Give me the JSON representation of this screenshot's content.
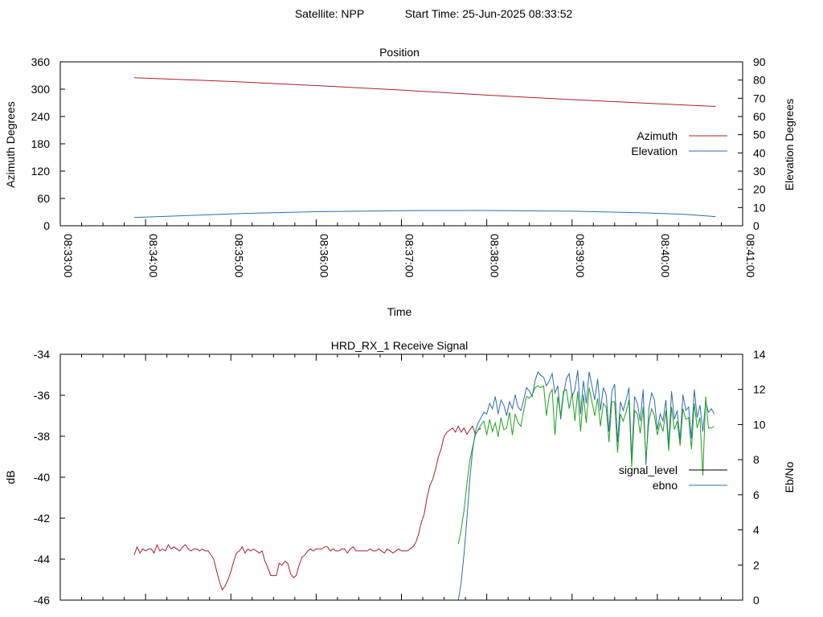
{
  "header": {
    "satellite_label": "Satellite: NPP",
    "start_time_label": "Start Time: 25-Jun-2025 08:33:52"
  },
  "chart_data": [
    {
      "type": "line",
      "title": "Position",
      "xlabel": "Time",
      "ylabel": "Azimuth Degrees",
      "y2label": "Elevation Degrees",
      "x_ticks": [
        "08:33:00",
        "08:34:00",
        "08:35:00",
        "08:36:00",
        "08:37:00",
        "08:38:00",
        "08:39:00",
        "08:40:00",
        "08:41:00"
      ],
      "ylim": [
        0,
        360
      ],
      "y_ticks": [
        0,
        60,
        120,
        180,
        240,
        300,
        360
      ],
      "y2lim": [
        0,
        90
      ],
      "y2_ticks": [
        0,
        10,
        20,
        30,
        40,
        50,
        60,
        70,
        80,
        90
      ],
      "xlim_min": [
        0,
        480
      ],
      "legend_position": "right",
      "series": [
        {
          "name": "Azimuth",
          "axis": "y",
          "color": "#a8202a",
          "x": [
            52,
            120,
            180,
            240,
            300,
            360,
            420,
            461
          ],
          "y": [
            325,
            317,
            308,
            298,
            287,
            277,
            268,
            262
          ]
        },
        {
          "name": "Elevation",
          "axis": "y2",
          "color": "#2f6cb0",
          "x": [
            52,
            90,
            130,
            180,
            240,
            300,
            360,
            410,
            440,
            461
          ],
          "y": [
            4.5,
            5.6,
            6.8,
            7.7,
            8.3,
            8.4,
            8.0,
            7.1,
            6.2,
            5.0
          ]
        }
      ]
    },
    {
      "type": "line",
      "title": "HRD_RX_1 Receive Signal",
      "xlabel": "",
      "ylabel": "dB",
      "y2label": "Eb/No",
      "ylim": [
        -46,
        -34
      ],
      "y_ticks": [
        -46,
        -44,
        -42,
        -40,
        -38,
        -36,
        -34
      ],
      "y2lim": [
        0,
        14
      ],
      "y2_ticks": [
        0,
        2,
        4,
        6,
        8,
        10,
        12,
        14
      ],
      "xlim_min": [
        0,
        480
      ],
      "legend_position": "right",
      "series": [
        {
          "name": "signal_level",
          "axis": "y",
          "color": "#a8202a",
          "legend_color": "#000000",
          "x": [
            52,
            54,
            56,
            58,
            60,
            62,
            64,
            66,
            68,
            70,
            72,
            74,
            76,
            78,
            80,
            82,
            84,
            86,
            88,
            90,
            92,
            94,
            96,
            98,
            100,
            102,
            104,
            106,
            108,
            110,
            112,
            114,
            116,
            118,
            120,
            122,
            124,
            126,
            128,
            130,
            132,
            134,
            136,
            138,
            140,
            142,
            144,
            146,
            148,
            150,
            152,
            154,
            156,
            158,
            160,
            162,
            164,
            166,
            168,
            170,
            172,
            174,
            176,
            178,
            180,
            182,
            184,
            186,
            188,
            190,
            192,
            194,
            196,
            198,
            200,
            202,
            204,
            206,
            208,
            210,
            212,
            214,
            216,
            218,
            220,
            222,
            224,
            226,
            228,
            230,
            232,
            234,
            236,
            238,
            240,
            242,
            244,
            246,
            248,
            250,
            252,
            254,
            256,
            258,
            260,
            262,
            264,
            266,
            268,
            270,
            272,
            274,
            276,
            278,
            280,
            282,
            284,
            286,
            288,
            290,
            292,
            294,
            296
          ],
          "y": [
            -43.8,
            -43.4,
            -43.7,
            -43.5,
            -43.6,
            -43.5,
            -43.5,
            -43.7,
            -43.3,
            -43.6,
            -43.5,
            -43.6,
            -43.3,
            -43.5,
            -43.4,
            -43.5,
            -43.6,
            -43.4,
            -43.3,
            -43.5,
            -43.6,
            -43.5,
            -43.5,
            -43.6,
            -43.5,
            -43.6,
            -43.6,
            -43.8,
            -44.0,
            -44.6,
            -45.1,
            -45.5,
            -45.3,
            -45.0,
            -44.6,
            -44.1,
            -43.7,
            -43.6,
            -43.4,
            -43.7,
            -43.5,
            -43.6,
            -43.5,
            -43.6,
            -43.7,
            -43.6,
            -44.1,
            -44.4,
            -44.8,
            -44.8,
            -44.8,
            -44.2,
            -44.3,
            -44.1,
            -44.2,
            -44.7,
            -44.9,
            -44.8,
            -44.3,
            -43.9,
            -43.8,
            -43.6,
            -43.5,
            -43.6,
            -43.5,
            -43.5,
            -43.5,
            -43.4,
            -43.4,
            -43.6,
            -43.5,
            -43.6,
            -43.6,
            -43.5,
            -43.5,
            -43.7,
            -43.5,
            -43.4,
            -43.6,
            -43.6,
            -43.6,
            -43.6,
            -43.6,
            -43.5,
            -43.6,
            -43.6,
            -43.5,
            -43.6,
            -43.7,
            -43.5,
            -43.6,
            -43.7,
            -43.6,
            -43.5,
            -43.6,
            -43.6,
            -43.6,
            -43.5,
            -43.4,
            -43.2,
            -42.8,
            -42.2,
            -41.8,
            -41.0,
            -40.4,
            -40.1,
            -39.6,
            -39.0,
            -38.6,
            -38.0,
            -37.8,
            -37.7,
            -37.6,
            -37.8,
            -37.5,
            -37.8,
            -37.6,
            -37.9,
            -37.7,
            -37.5,
            -37.9,
            -37.7,
            -37.6
          ]
        },
        {
          "name": "ebno",
          "axis": "y2",
          "color": "#2f6cb0",
          "x": [
            280,
            282,
            284,
            286,
            288,
            290,
            292,
            294,
            296,
            298,
            300,
            302,
            304,
            306,
            308,
            310,
            312,
            314,
            316,
            318,
            320,
            322,
            324,
            326,
            328,
            330,
            332,
            334,
            336,
            338,
            340,
            342,
            344,
            346,
            348,
            350,
            352,
            354,
            356,
            358,
            360,
            362,
            364,
            366,
            368,
            370,
            372,
            374,
            376,
            378,
            380,
            382,
            384,
            386,
            388,
            390,
            392,
            394,
            396,
            398,
            400,
            402,
            404,
            406,
            408,
            410,
            412,
            414,
            416,
            418,
            420,
            422,
            424,
            426,
            428,
            430,
            432,
            434,
            436,
            438,
            440,
            442,
            444,
            446,
            448,
            450,
            452,
            454,
            456,
            458,
            460
          ],
          "y": [
            0,
            1.0,
            2.6,
            4.6,
            6.8,
            8.5,
            9.6,
            10.1,
            10.4,
            10.7,
            10.6,
            11.2,
            10.9,
            11.6,
            10.6,
            11.4,
            11.1,
            10.5,
            11.3,
            10.9,
            11.7,
            11.0,
            10.8,
            11.4,
            12.1,
            11.9,
            11.6,
            12.5,
            13.0,
            12.8,
            12.7,
            12.2,
            12.5,
            12.9,
            11.8,
            12.2,
            10.3,
            11.7,
            12.6,
            12.9,
            11.6,
            12.0,
            13.1,
            10.6,
            12.5,
            11.2,
            13.0,
            12.2,
            11.4,
            12.6,
            10.8,
            12.1,
            11.7,
            9.6,
            11.9,
            12.3,
            9.0,
            11.3,
            10.8,
            11.4,
            12.1,
            8.0,
            11.6,
            11.2,
            10.2,
            12.0,
            7.7,
            10.9,
            11.8,
            11.4,
            9.7,
            10.6,
            10.2,
            11.4,
            8.8,
            11.9,
            10.3,
            10.8,
            9.1,
            11.7,
            10.8,
            11.0,
            9.2,
            12.0,
            10.4,
            11.1,
            9.6,
            11.3,
            10.7,
            10.9,
            10.6
          ]
        },
        {
          "name": "",
          "axis": "y2",
          "color": "#22a020",
          "x": [
            280,
            282,
            284,
            286,
            288,
            290,
            292,
            294,
            296,
            298,
            300,
            302,
            304,
            306,
            308,
            310,
            312,
            314,
            316,
            318,
            320,
            322,
            324,
            326,
            328,
            330,
            332,
            334,
            336,
            338,
            340,
            342,
            344,
            346,
            348,
            350,
            352,
            354,
            356,
            358,
            360,
            362,
            364,
            366,
            368,
            370,
            372,
            374,
            376,
            378,
            380,
            382,
            384,
            386,
            388,
            390,
            392,
            394,
            396,
            398,
            400,
            402,
            404,
            406,
            408,
            410,
            412,
            414,
            416,
            418,
            420,
            422,
            424,
            426,
            428,
            430,
            432,
            434,
            436,
            438,
            440,
            442,
            444,
            446,
            448,
            450,
            452,
            454,
            456,
            458,
            460
          ],
          "y": [
            3.2,
            4.0,
            5.1,
            6.6,
            7.9,
            8.7,
            9.4,
            9.7,
            10.0,
            10.2,
            9.4,
            10.3,
            9.6,
            10.1,
            9.3,
            10.4,
            9.7,
            9.8,
            10.7,
            9.4,
            10.6,
            10.1,
            9.9,
            10.8,
            11.6,
            11.5,
            11.7,
            12.1,
            12.2,
            12.1,
            12.2,
            10.5,
            11.7,
            12.0,
            9.4,
            11.6,
            10.5,
            11.9,
            12.0,
            10.9,
            11.8,
            10.2,
            11.9,
            9.6,
            11.7,
            10.1,
            12.1,
            11.3,
            10.5,
            11.5,
            9.9,
            11.2,
            11.0,
            9.0,
            11.3,
            11.3,
            8.4,
            10.6,
            10.2,
            10.7,
            11.4,
            7.6,
            10.8,
            10.6,
            9.5,
            11.0,
            8.0,
            10.2,
            10.9,
            10.5,
            9.4,
            10.1,
            9.6,
            10.8,
            8.5,
            11.0,
            9.7,
            10.2,
            8.8,
            10.9,
            10.3,
            10.4,
            8.6,
            11.2,
            9.8,
            10.4,
            7.1,
            11.6,
            9.8,
            9.8,
            9.9
          ]
        }
      ]
    }
  ]
}
